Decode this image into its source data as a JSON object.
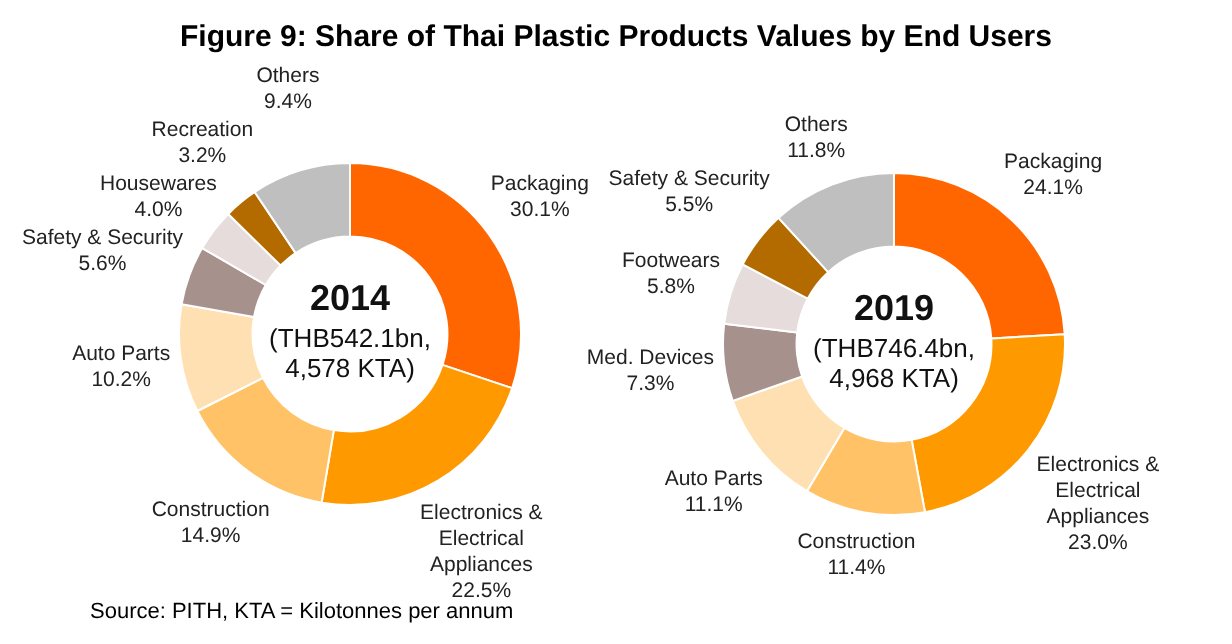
{
  "chart_data": [
    {
      "type": "donut",
      "title": "2014",
      "subtitle": "(THB542.1bn, 4,578 KTA)",
      "annotations": [
        "Figure 9: Share of Thai Plastic Products Values by End Users",
        "Source: PITH, KTA = Kilotonnes per annum"
      ],
      "categories": [
        "Packaging",
        "Electronics & Electrical Appliances",
        "Construction",
        "Auto Parts",
        "Safety & Security",
        "Housewares",
        "Recreation",
        "Others"
      ],
      "values": [
        30.1,
        22.5,
        14.9,
        10.2,
        5.6,
        4.0,
        3.2,
        9.4
      ],
      "value_labels": [
        "30.1%",
        "22.5%",
        "14.9%",
        "10.2%",
        "5.6%",
        "4.0%",
        "3.2%",
        "9.4%"
      ],
      "colors": [
        "#ff6600",
        "#ff9900",
        "#ffc266",
        "#ffe0b3",
        "#a6918d",
        "#e7dcdc",
        "#b36b00",
        "#bfbfbf"
      ],
      "legend": false
    },
    {
      "type": "donut",
      "title": "2019",
      "subtitle": "(THB746.4bn, 4,968 KTA)",
      "categories": [
        "Packaging",
        "Electronics & Electrical Appliances",
        "Construction",
        "Auto Parts",
        "Med. Devices",
        "Footwears",
        "Safety & Security",
        "Others"
      ],
      "values": [
        24.1,
        23.0,
        11.4,
        11.1,
        7.3,
        5.8,
        5.5,
        11.8
      ],
      "value_labels": [
        "24.1%",
        "23.0%",
        "11.4%",
        "11.1%",
        "7.3%",
        "5.8%",
        "5.5%",
        "11.8%"
      ],
      "colors": [
        "#ff6600",
        "#ff9900",
        "#ffc266",
        "#ffe0b3",
        "#a6918d",
        "#e7dcdc",
        "#b36b00",
        "#bfbfbf"
      ],
      "legend": false
    }
  ]
}
